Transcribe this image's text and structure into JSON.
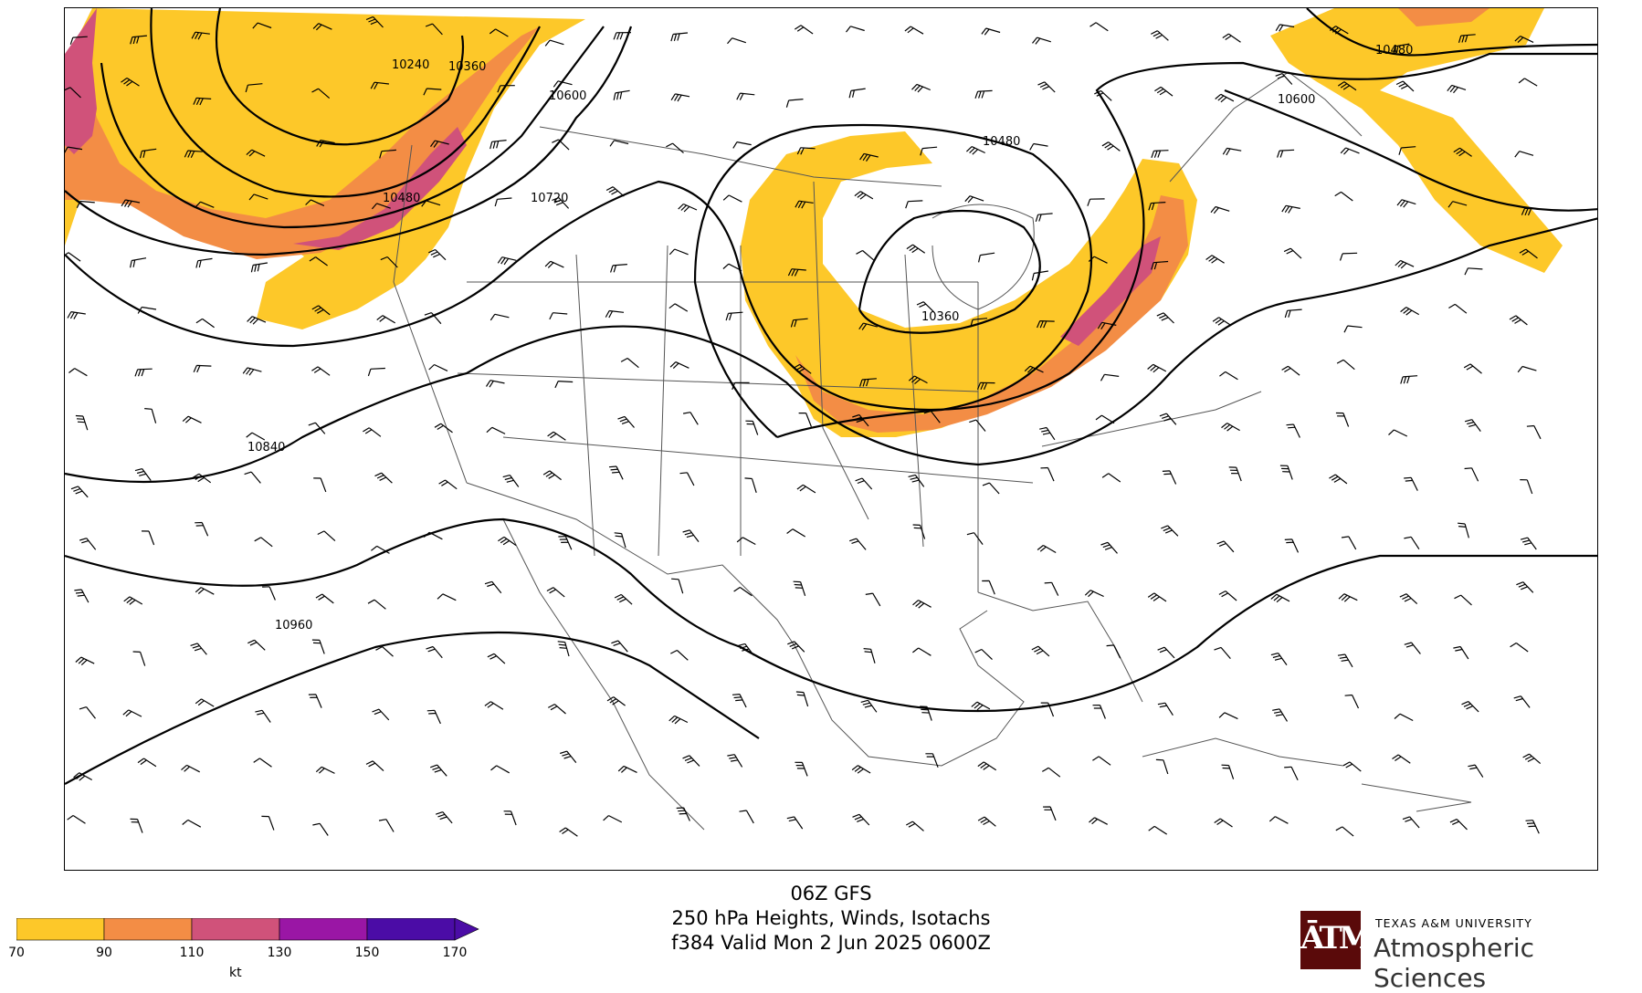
{
  "title": {
    "line1": "06Z GFS",
    "line2": "250 hPa Heights, Winds, Isotachs",
    "line3": "f384 Valid Mon 2 Jun 2025 0600Z"
  },
  "colorbar": {
    "ticks": [
      "70",
      "90",
      "110",
      "130",
      "150",
      "170"
    ],
    "unit": "kt",
    "colors": [
      "#fdc829",
      "#f38d45",
      "#d0527a",
      "#9a16a5",
      "#4b0ca6"
    ]
  },
  "contour_labels": [
    "10240",
    "10360",
    "10600",
    "10480",
    "10720",
    "10840",
    "10960",
    "10480",
    "10360",
    "10480",
    "10600"
  ],
  "logo": {
    "university": "TEXAS A&M UNIVERSITY",
    "department": "Atmospheric Sciences",
    "glyph": "ĀTM",
    "brand_color": "#5a0a0a"
  },
  "map": {
    "line_color": "#000000",
    "border_color": "#555555"
  }
}
